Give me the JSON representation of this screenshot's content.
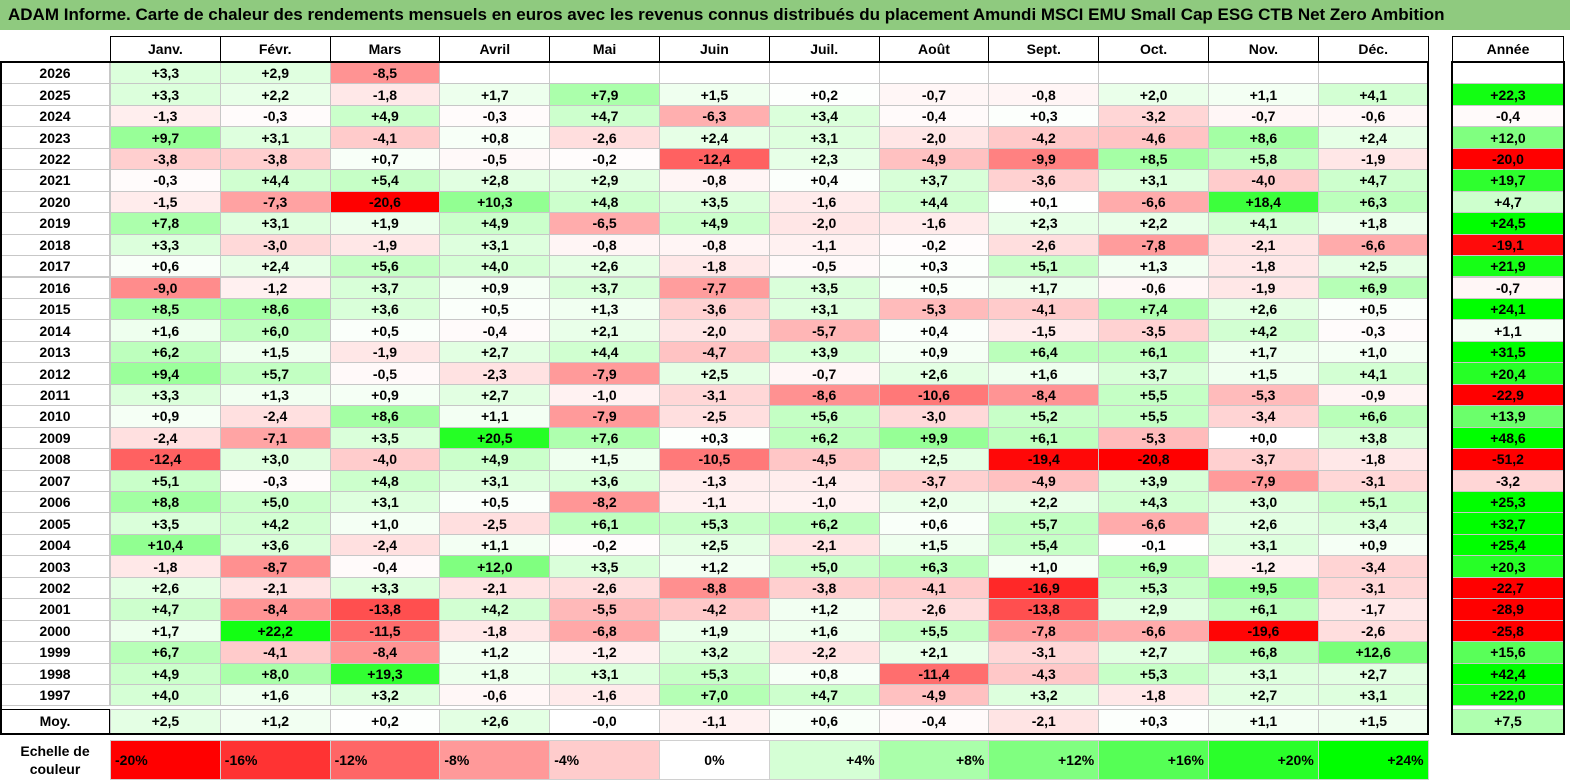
{
  "title": "ADAM Informe. Carte de chaleur des rendements mensuels en euros avec les revenus connus distribués du placement Amundi MSCI EMU Small Cap ESG CTB Net Zero Ambition",
  "colors": {
    "title_bg": "#8fca7f",
    "negative": "#ff0000",
    "positive": "#00ff00",
    "neutral": "#ffffff"
  },
  "chart_data": {
    "type": "heatmap",
    "title": "ADAM Informe. Carte de chaleur des rendements mensuels en euros avec les revenus connus distribués du placement Amundi MSCI EMU Small Cap ESG CTB Net Zero Ambition",
    "columns": [
      "Janv.",
      "Févr.",
      "Mars",
      "Avril",
      "Mai",
      "Juin",
      "Juil.",
      "Août",
      "Sept.",
      "Oct.",
      "Nov.",
      "Déc."
    ],
    "year_column_label": "Année",
    "average_row_label": "Moy.",
    "rows": [
      {
        "year": "2026",
        "months": [
          "+3,3",
          "+2,9",
          "-8,5",
          "",
          "",
          "",
          "",
          "",
          "",
          "",
          "",
          ""
        ],
        "annual": ""
      },
      {
        "year": "2025",
        "months": [
          "+3,3",
          "+2,2",
          "-1,8",
          "+1,7",
          "+7,9",
          "+1,5",
          "+0,2",
          "-0,7",
          "-0,8",
          "+2,0",
          "+1,1",
          "+4,1"
        ],
        "annual": "+22,3"
      },
      {
        "year": "2024",
        "months": [
          "-1,3",
          "-0,3",
          "+4,9",
          "-0,3",
          "+4,7",
          "-6,3",
          "+3,4",
          "-0,4",
          "+0,3",
          "-3,2",
          "-0,7",
          "-0,6"
        ],
        "annual": "-0,4"
      },
      {
        "year": "2023",
        "months": [
          "+9,7",
          "+3,1",
          "-4,1",
          "+0,8",
          "-2,6",
          "+2,4",
          "+3,1",
          "-2,0",
          "-4,2",
          "-4,6",
          "+8,6",
          "+2,4"
        ],
        "annual": "+12,0"
      },
      {
        "year": "2022",
        "months": [
          "-3,8",
          "-3,8",
          "+0,7",
          "-0,5",
          "-0,2",
          "-12,4",
          "+2,3",
          "-4,9",
          "-9,9",
          "+8,5",
          "+5,8",
          "-1,9"
        ],
        "annual": "-20,0"
      },
      {
        "year": "2021",
        "months": [
          "-0,3",
          "+4,4",
          "+5,4",
          "+2,8",
          "+2,9",
          "-0,8",
          "+0,4",
          "+3,7",
          "-3,6",
          "+3,1",
          "-4,0",
          "+4,7"
        ],
        "annual": "+19,7"
      },
      {
        "year": "2020",
        "months": [
          "-1,5",
          "-7,3",
          "-20,6",
          "+10,3",
          "+4,8",
          "+3,5",
          "-1,6",
          "+4,4",
          "+0,1",
          "-6,6",
          "+18,4",
          "+6,3"
        ],
        "annual": "+4,7"
      },
      {
        "year": "2019",
        "months": [
          "+7,8",
          "+3,1",
          "+1,9",
          "+4,9",
          "-6,5",
          "+4,9",
          "-2,0",
          "-1,6",
          "+2,3",
          "+2,2",
          "+4,1",
          "+1,8"
        ],
        "annual": "+24,5"
      },
      {
        "year": "2018",
        "months": [
          "+3,3",
          "-3,0",
          "-1,9",
          "+3,1",
          "-0,8",
          "-0,8",
          "-1,1",
          "-0,2",
          "-2,6",
          "-7,8",
          "-2,1",
          "-6,6"
        ],
        "annual": "-19,1"
      },
      {
        "year": "2017",
        "months": [
          "+0,6",
          "+2,4",
          "+5,6",
          "+4,0",
          "+2,6",
          "-1,8",
          "-0,5",
          "+0,3",
          "+5,1",
          "+1,3",
          "-1,8",
          "+2,5"
        ],
        "annual": "+21,9"
      },
      {
        "year": "2016",
        "months": [
          "-9,0",
          "-1,2",
          "+3,7",
          "+0,9",
          "+3,7",
          "-7,7",
          "+3,5",
          "+0,5",
          "+1,7",
          "-0,6",
          "-1,9",
          "+6,9"
        ],
        "annual": "-0,7"
      },
      {
        "year": "2015",
        "months": [
          "+8,5",
          "+8,6",
          "+3,6",
          "+0,5",
          "+1,3",
          "-3,6",
          "+3,1",
          "-5,3",
          "-4,1",
          "+7,4",
          "+2,6",
          "+0,5"
        ],
        "annual": "+24,1"
      },
      {
        "year": "2014",
        "months": [
          "+1,6",
          "+6,0",
          "+0,5",
          "-0,4",
          "+2,1",
          "-2,0",
          "-5,7",
          "+0,4",
          "-1,5",
          "-3,5",
          "+4,2",
          "-0,3"
        ],
        "annual": "+1,1"
      },
      {
        "year": "2013",
        "months": [
          "+6,2",
          "+1,5",
          "-1,9",
          "+2,7",
          "+4,4",
          "-4,7",
          "+3,9",
          "+0,9",
          "+6,4",
          "+6,1",
          "+1,7",
          "+1,0"
        ],
        "annual": "+31,5"
      },
      {
        "year": "2012",
        "months": [
          "+9,4",
          "+5,7",
          "-0,5",
          "-2,3",
          "-7,9",
          "+2,5",
          "-0,7",
          "+2,6",
          "+1,6",
          "+3,7",
          "+1,5",
          "+4,1"
        ],
        "annual": "+20,4"
      },
      {
        "year": "2011",
        "months": [
          "+3,3",
          "+1,3",
          "+0,9",
          "+2,7",
          "-1,0",
          "-3,1",
          "-8,6",
          "-10,6",
          "-8,4",
          "+5,5",
          "-5,3",
          "-0,9"
        ],
        "annual": "-22,9"
      },
      {
        "year": "2010",
        "months": [
          "+0,9",
          "-2,4",
          "+8,6",
          "+1,1",
          "-7,9",
          "-2,5",
          "+5,6",
          "-3,0",
          "+5,2",
          "+5,5",
          "-3,4",
          "+6,6"
        ],
        "annual": "+13,9"
      },
      {
        "year": "2009",
        "months": [
          "-2,4",
          "-7,1",
          "+3,5",
          "+20,5",
          "+7,6",
          "+0,3",
          "+6,2",
          "+9,9",
          "+6,1",
          "-5,3",
          "+0,0",
          "+3,8"
        ],
        "annual": "+48,6"
      },
      {
        "year": "2008",
        "months": [
          "-12,4",
          "+3,0",
          "-4,0",
          "+4,9",
          "+1,5",
          "-10,5",
          "-4,5",
          "+2,5",
          "-19,4",
          "-20,8",
          "-3,7",
          "-1,8"
        ],
        "annual": "-51,2"
      },
      {
        "year": "2007",
        "months": [
          "+5,1",
          "-0,3",
          "+4,8",
          "+3,1",
          "+3,6",
          "-1,3",
          "-1,4",
          "-3,7",
          "-4,9",
          "+3,9",
          "-7,9",
          "-3,1"
        ],
        "annual": "-3,2"
      },
      {
        "year": "2006",
        "months": [
          "+8,8",
          "+5,0",
          "+3,1",
          "+0,5",
          "-8,2",
          "-1,1",
          "-1,0",
          "+2,0",
          "+2,2",
          "+4,3",
          "+3,0",
          "+5,1"
        ],
        "annual": "+25,3"
      },
      {
        "year": "2005",
        "months": [
          "+3,5",
          "+4,2",
          "+1,0",
          "-2,5",
          "+6,1",
          "+5,3",
          "+6,2",
          "+0,6",
          "+5,7",
          "-6,6",
          "+2,6",
          "+3,4"
        ],
        "annual": "+32,7"
      },
      {
        "year": "2004",
        "months": [
          "+10,4",
          "+3,6",
          "-2,4",
          "+1,1",
          "-0,2",
          "+2,5",
          "-2,1",
          "+1,5",
          "+5,4",
          "-0,1",
          "+3,1",
          "+0,9"
        ],
        "annual": "+25,4"
      },
      {
        "year": "2003",
        "months": [
          "-1,8",
          "-8,7",
          "-0,4",
          "+12,0",
          "+3,5",
          "+1,2",
          "+5,0",
          "+6,3",
          "+1,0",
          "+6,9",
          "-1,2",
          "-3,4"
        ],
        "annual": "+20,3"
      },
      {
        "year": "2002",
        "months": [
          "+2,6",
          "-2,1",
          "+3,3",
          "-2,1",
          "-2,6",
          "-8,8",
          "-3,8",
          "-4,1",
          "-16,9",
          "+5,3",
          "+9,5",
          "-3,1"
        ],
        "annual": "-22,7"
      },
      {
        "year": "2001",
        "months": [
          "+4,7",
          "-8,4",
          "-13,8",
          "+4,2",
          "-5,5",
          "-4,2",
          "+1,2",
          "-2,6",
          "-13,8",
          "+2,9",
          "+6,1",
          "-1,7"
        ],
        "annual": "-28,9"
      },
      {
        "year": "2000",
        "months": [
          "+1,7",
          "+22,2",
          "-11,5",
          "-1,8",
          "-6,8",
          "+1,9",
          "+1,6",
          "+5,5",
          "-7,8",
          "-6,6",
          "-19,6",
          "-2,6"
        ],
        "annual": "-25,8"
      },
      {
        "year": "1999",
        "months": [
          "+6,7",
          "-4,1",
          "-8,4",
          "+1,2",
          "-1,2",
          "+3,2",
          "-2,2",
          "+2,1",
          "-3,1",
          "+2,7",
          "+6,8",
          "+12,6"
        ],
        "annual": "+15,6"
      },
      {
        "year": "1998",
        "months": [
          "+4,9",
          "+8,0",
          "+19,3",
          "+1,8",
          "+3,1",
          "+5,3",
          "+0,8",
          "-11,4",
          "-4,3",
          "+5,3",
          "+3,1",
          "+2,7"
        ],
        "annual": "+42,4"
      },
      {
        "year": "1997",
        "months": [
          "+4,0",
          "+1,6",
          "+3,2",
          "-0,6",
          "-1,6",
          "+7,0",
          "+4,7",
          "-4,9",
          "+3,2",
          "-1,8",
          "+2,7",
          "+3,1"
        ],
        "annual": "+22,0"
      }
    ],
    "averages": [
      "+2,5",
      "+1,2",
      "+0,2",
      "+2,6",
      "-0,0",
      "-1,1",
      "+0,6",
      "-0,4",
      "-2,1",
      "+0,3",
      "+1,1",
      "+1,5"
    ],
    "average_annual": "+7,5",
    "scale_label": "Echelle de couleur",
    "scale": [
      {
        "label": "-20%",
        "value": -20
      },
      {
        "label": "-16%",
        "value": -16
      },
      {
        "label": "-12%",
        "value": -12
      },
      {
        "label": "-8%",
        "value": -8
      },
      {
        "label": "-4%",
        "value": -4
      },
      {
        "label": "0%",
        "value": 0
      },
      {
        "label": "+4%",
        "value": 4
      },
      {
        "label": "+8%",
        "value": 8
      },
      {
        "label": "+12%",
        "value": 12
      },
      {
        "label": "+16%",
        "value": 16
      },
      {
        "label": "+20%",
        "value": 20
      },
      {
        "label": "+24%",
        "value": 24
      }
    ]
  }
}
